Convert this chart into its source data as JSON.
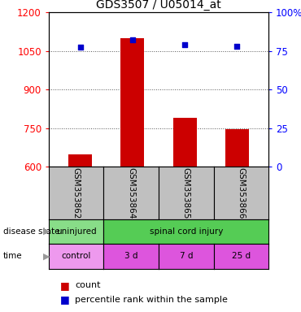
{
  "title": "GDS3507 / U05014_at",
  "samples": [
    "GSM353862",
    "GSM353864",
    "GSM353865",
    "GSM353866"
  ],
  "bar_values": [
    650,
    1100,
    790,
    748
  ],
  "scatter_values": [
    1065,
    1095,
    1075,
    1068
  ],
  "ylim_left": [
    600,
    1200
  ],
  "ylim_right": [
    0,
    100
  ],
  "left_ticks": [
    600,
    750,
    900,
    1050,
    1200
  ],
  "right_ticks": [
    0,
    25,
    50,
    75,
    100
  ],
  "right_tick_labels": [
    "0",
    "25",
    "50",
    "75",
    "100%"
  ],
  "bar_color": "#cc0000",
  "scatter_color": "#0000cc",
  "bar_width": 0.45,
  "sample_box_color": "#c0c0c0",
  "grid_color": "#555555",
  "legend_count_color": "#cc0000",
  "legend_percentile_color": "#0000cc",
  "disease_uninjured_color": "#88dd88",
  "disease_injury_color": "#55cc55",
  "time_control_color": "#ee99ee",
  "time_other_color": "#dd55dd"
}
